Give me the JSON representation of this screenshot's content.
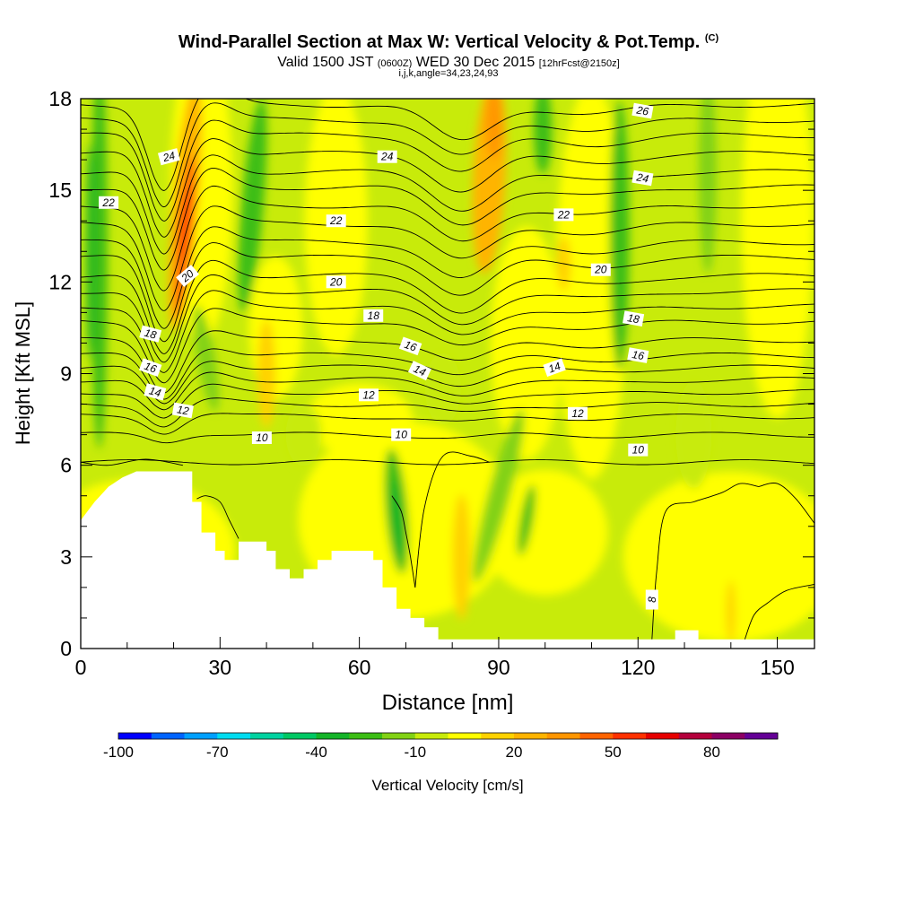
{
  "title": {
    "main": "Wind-Parallel Section at Max W: Vertical Velocity & Pot.Temp.",
    "copyright": "(C)",
    "line2_a": "Valid 1500 JST",
    "line2_b": "(0600Z)",
    "line2_c": "WED 30 Dec 2015",
    "line2_d": "[12hrFcst@2150z]",
    "line3": "i,j,k,angle=34,23,24,93"
  },
  "chart_data": {
    "type": "heatmap",
    "xlabel": "Distance [nm]",
    "ylabel": "Height [Kft MSL]",
    "xlim": [
      0,
      158
    ],
    "ylim": [
      0,
      18
    ],
    "x_ticks": [
      0,
      30,
      60,
      90,
      120,
      150
    ],
    "y_ticks": [
      0,
      3,
      6,
      9,
      12,
      15,
      18
    ],
    "colorbar": {
      "label": "Vertical Velocity [cm/s]",
      "ticks": [
        -100,
        -70,
        -40,
        -10,
        20,
        50,
        80
      ],
      "min": -100,
      "max": 100,
      "colors": [
        "#0000ff",
        "#0064ff",
        "#00a0ff",
        "#00dcf0",
        "#00d2a0",
        "#00c864",
        "#14b428",
        "#3cbe14",
        "#82d214",
        "#c8eb0a",
        "#ffff00",
        "#ffd200",
        "#ffb400",
        "#ff9600",
        "#ff6400",
        "#ff3200",
        "#e60000",
        "#b4003c",
        "#8c0064",
        "#640096"
      ]
    },
    "theta_contour_labels": [
      8,
      10,
      12,
      14,
      16,
      18,
      20,
      22,
      24,
      26
    ],
    "terrain": [
      [
        0,
        4.2
      ],
      [
        3,
        4.8
      ],
      [
        6,
        5.3
      ],
      [
        9,
        5.6
      ],
      [
        12,
        5.8
      ],
      [
        24,
        5.8
      ],
      [
        24,
        4.8
      ],
      [
        26,
        4.8
      ],
      [
        26,
        3.8
      ],
      [
        29,
        3.8
      ],
      [
        29,
        3.2
      ],
      [
        31,
        3.2
      ],
      [
        31,
        2.9
      ],
      [
        34,
        2.9
      ],
      [
        34,
        3.5
      ],
      [
        40,
        3.5
      ],
      [
        40,
        3.2
      ],
      [
        42,
        3.2
      ],
      [
        42,
        2.6
      ],
      [
        45,
        2.6
      ],
      [
        45,
        2.3
      ],
      [
        48,
        2.3
      ],
      [
        48,
        2.6
      ],
      [
        51,
        2.6
      ],
      [
        51,
        2.9
      ],
      [
        54,
        2.9
      ],
      [
        54,
        3.2
      ],
      [
        63,
        3.2
      ],
      [
        63,
        2.9
      ],
      [
        65,
        2.9
      ],
      [
        65,
        2.0
      ],
      [
        68,
        2.0
      ],
      [
        68,
        1.3
      ],
      [
        71,
        1.3
      ],
      [
        71,
        1.0
      ],
      [
        74,
        1.0
      ],
      [
        74,
        0.7
      ],
      [
        77,
        0.7
      ],
      [
        77,
        0.3
      ],
      [
        128,
        0.3
      ],
      [
        128,
        0.6
      ],
      [
        133,
        0.6
      ],
      [
        133,
        0.3
      ],
      [
        158,
        0.3
      ]
    ]
  }
}
